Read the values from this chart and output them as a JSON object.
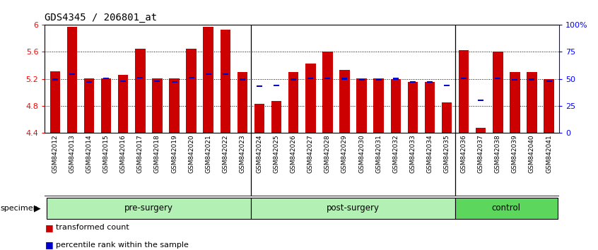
{
  "title": "GDS4345 / 206801_at",
  "samples": [
    "GSM842012",
    "GSM842013",
    "GSM842014",
    "GSM842015",
    "GSM842016",
    "GSM842017",
    "GSM842018",
    "GSM842019",
    "GSM842020",
    "GSM842021",
    "GSM842022",
    "GSM842023",
    "GSM842024",
    "GSM842025",
    "GSM842026",
    "GSM842027",
    "GSM842028",
    "GSM842029",
    "GSM842030",
    "GSM842031",
    "GSM842032",
    "GSM842033",
    "GSM842034",
    "GSM842035",
    "GSM842036",
    "GSM842037",
    "GSM842038",
    "GSM842039",
    "GSM842040",
    "GSM842041"
  ],
  "transformed_count": [
    5.31,
    5.97,
    5.21,
    5.21,
    5.26,
    5.65,
    5.21,
    5.21,
    5.65,
    5.97,
    5.93,
    5.3,
    4.83,
    4.87,
    5.3,
    5.43,
    5.6,
    5.33,
    5.21,
    5.21,
    5.2,
    5.15,
    5.15,
    4.85,
    5.63,
    4.47,
    5.6,
    5.3,
    5.3,
    5.2
  ],
  "percentile_rank": [
    5.19,
    5.265,
    5.155,
    5.21,
    5.16,
    5.215,
    5.165,
    5.155,
    5.215,
    5.265,
    5.265,
    5.19,
    5.09,
    5.1,
    5.19,
    5.21,
    5.21,
    5.2,
    5.18,
    5.18,
    5.2,
    5.15,
    5.15,
    5.1,
    5.21,
    4.88,
    5.21,
    5.18,
    5.19,
    5.165
  ],
  "groups": [
    {
      "label": "pre-surgery",
      "start": 0,
      "end": 11,
      "color": "#b3f0b3"
    },
    {
      "label": "post-surgery",
      "start": 12,
      "end": 23,
      "color": "#b3f0b3"
    },
    {
      "label": "control",
      "start": 24,
      "end": 29,
      "color": "#5cd65c"
    }
  ],
  "ylim_left": [
    4.4,
    6.0
  ],
  "ylim_right": [
    0,
    100
  ],
  "yticks_left": [
    4.4,
    4.8,
    5.2,
    5.6,
    6.0
  ],
  "ytick_labels_left": [
    "4.4",
    "4.8",
    "5.2",
    "5.6",
    "6"
  ],
  "yticks_right": [
    0,
    25,
    50,
    75,
    100
  ],
  "ytick_labels_right": [
    "0",
    "25",
    "50",
    "75",
    "100%"
  ],
  "bar_color": "#CC0000",
  "blue_color": "#0000CC",
  "bg_color": "#c8c8c8",
  "plot_bg": "#ffffff",
  "title_fontsize": 10,
  "legend_items": [
    "transformed count",
    "percentile rank within the sample"
  ]
}
